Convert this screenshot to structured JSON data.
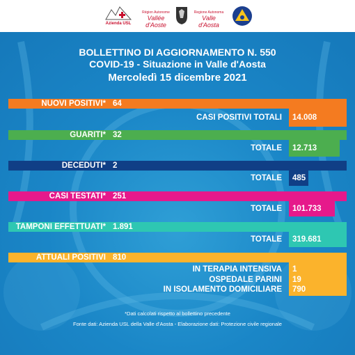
{
  "header": {
    "logo1_text": "Azienda USL",
    "logo2_line1": "Région Autonome",
    "logo2_line2": "Vallée d'Aoste",
    "logo3_line1": "Regione Autonoma",
    "logo3_line2": "Valle d'Aosta"
  },
  "title": {
    "line1": "BOLLETTINO DI AGGIORNAMENTO N. 550",
    "line2": "COVID-19 - Situazione in Valle d'Aosta",
    "line3": "Mercoledì 15 dicembre 2021"
  },
  "rows": {
    "nuovi_positivi": {
      "label": "NUOVI POSITIVI*",
      "value": "64",
      "total_label": "CASI POSITIVI TOTALI",
      "total": "14.008"
    },
    "guariti": {
      "label": "GUARITI*",
      "value": "32",
      "total_label": "TOTALE",
      "total": "12.713"
    },
    "deceduti": {
      "label": "DECEDUTI*",
      "value": "2",
      "total_label": "TOTALE",
      "total": "485"
    },
    "casi_testati": {
      "label": "CASI TESTATI*",
      "value": "251",
      "total_label": "TOTALE",
      "total": "101.733"
    },
    "tamponi": {
      "label": "TAMPONI EFFETTUATI*",
      "value": "1.891",
      "total_label": "TOTALE",
      "total": "319.681"
    },
    "attuali_positivi": {
      "label": "ATTUALI POSITIVI",
      "value": "810",
      "sub": [
        {
          "label": "IN TERAPIA INTENSIVA",
          "value": "1"
        },
        {
          "label": "OSPEDALE PARINI",
          "value": "19"
        },
        {
          "label": "IN ISOLAMENTO DOMICILIARE",
          "value": "790"
        }
      ]
    }
  },
  "footer": {
    "note": "*Dati calcolati rispetto al bollettino precedente",
    "source": "Fonte dati: Azienda USL della Valle d'Aosta - Elaborazione dati: Protezione civile regionale"
  },
  "colors": {
    "background": "#1a86c7",
    "orange": "#f47b20",
    "green": "#4cae4f",
    "navy": "#103f86",
    "magenta": "#e6198b",
    "teal": "#2ec7b2",
    "yellow": "#fbb32c"
  },
  "icons": [
    "usl-logo-icon",
    "valle-aosta-logo-icon",
    "coat-of-arms-icon",
    "protezione-civile-icon"
  ]
}
